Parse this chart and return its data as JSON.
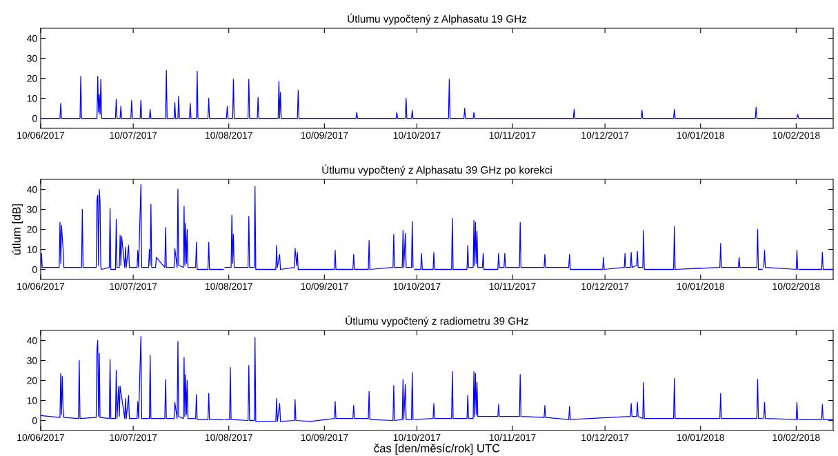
{
  "chart_data": [
    {
      "type": "line",
      "title": "Útlumu vypočtený z Alphasatu 19 GHz",
      "xlim": [
        "2017-06-10",
        "2018-02-22"
      ],
      "ylim": [
        -5,
        45
      ],
      "yticks": [
        0,
        10,
        20,
        30,
        40
      ],
      "xticks": [
        {
          "value": "2017-06-10",
          "label": "10/06/2017"
        },
        {
          "value": "2017-07-10",
          "label": "10/07/2017"
        },
        {
          "value": "2017-08-10",
          "label": "10/08/2017"
        },
        {
          "value": "2017-09-10",
          "label": "10/09/2017"
        },
        {
          "value": "2017-10-10",
          "label": "10/10/2017"
        },
        {
          "value": "2017-11-10",
          "label": "10/11/2017"
        },
        {
          "value": "2017-12-10",
          "label": "10/12/2017"
        },
        {
          "value": "2018-01-10",
          "label": "10/01/2018"
        },
        {
          "value": "2018-02-10",
          "label": "10/02/2018"
        }
      ],
      "grid": false,
      "series": [
        {
          "color": "#0000ff",
          "x": [
            "2017-06-10T00:00",
            "2017-06-16T06:00",
            "2017-06-16T12:00",
            "2017-06-16T18:00",
            "2017-06-22T18:00",
            "2017-06-23T00:00",
            "2017-06-23T06:00",
            "2017-06-28T06:00",
            "2017-06-28T12:00",
            "2017-06-28T18:00",
            "2017-06-29T00:00",
            "2017-06-29T06:00",
            "2017-06-29T12:00",
            "2017-06-29T18:00",
            "2017-07-04T06:00",
            "2017-07-04T12:00",
            "2017-07-04T18:00",
            "2017-07-05T18:00",
            "2017-07-06T00:00",
            "2017-07-06T06:00",
            "2017-07-09T06:00",
            "2017-07-09T12:00",
            "2017-07-09T18:00",
            "2017-07-12T06:00",
            "2017-07-12T12:00",
            "2017-07-12T18:00",
            "2017-07-15T06:00",
            "2017-07-15T12:00",
            "2017-07-15T18:00",
            "2017-07-20T12:00",
            "2017-07-20T18:00",
            "2017-07-21T00:00",
            "2017-07-23T06:00",
            "2017-07-23T12:00",
            "2017-07-23T18:00",
            "2017-07-24T12:00",
            "2017-07-24T18:00",
            "2017-07-25T00:00",
            "2017-07-28T06:00",
            "2017-07-28T12:00",
            "2017-07-28T18:00",
            "2017-07-30T12:00",
            "2017-07-30T18:00",
            "2017-07-31T00:00",
            "2017-08-03T06:00",
            "2017-08-03T12:00",
            "2017-08-03T18:00",
            "2017-08-09T06:00",
            "2017-08-09T12:00",
            "2017-08-09T18:00",
            "2017-08-11T06:00",
            "2017-08-11T12:00",
            "2017-08-11T18:00",
            "2017-08-16T06:00",
            "2017-08-16T12:00",
            "2017-08-16T18:00",
            "2017-08-19T06:00",
            "2017-08-19T12:00",
            "2017-08-19T18:00",
            "2017-08-26T00:00",
            "2017-08-26T06:00",
            "2017-08-26T12:00",
            "2017-08-26T18:00",
            "2017-08-27T00:00",
            "2017-09-01T06:00",
            "2017-09-01T12:00",
            "2017-09-01T18:00",
            "2017-09-20T06:00",
            "2017-09-20T12:00",
            "2017-09-20T18:00",
            "2017-10-03T06:00",
            "2017-10-03T12:00",
            "2017-10-03T18:00",
            "2017-10-06T06:00",
            "2017-10-06T12:00",
            "2017-10-06T18:00",
            "2017-10-08T06:00",
            "2017-10-08T12:00",
            "2017-10-08T18:00",
            "2017-10-20T06:00",
            "2017-10-20T12:00",
            "2017-10-20T18:00",
            "2017-10-25T06:00",
            "2017-10-25T12:00",
            "2017-10-25T18:00",
            "2017-10-28T06:00",
            "2017-10-28T12:00",
            "2017-10-28T18:00",
            "2017-11-29T18:00",
            "2017-11-30T00:00",
            "2017-11-30T06:00",
            "2017-12-21T18:00",
            "2017-12-22T00:00",
            "2017-12-22T06:00",
            "2018-01-01T06:00",
            "2018-01-01T12:00",
            "2018-01-01T18:00",
            "2018-01-27T18:00",
            "2018-01-28T00:00",
            "2018-01-28T06:00",
            "2018-02-10T06:00",
            "2018-02-10T12:00",
            "2018-02-10T18:00",
            "2018-02-22T00:00"
          ],
          "values": [
            0,
            0,
            7.5,
            0,
            0,
            21,
            0,
            0,
            21,
            3,
            12,
            2,
            19.5,
            0,
            0,
            9.5,
            0,
            0,
            6,
            0,
            0,
            9,
            0,
            0,
            9,
            0,
            0,
            4.5,
            0,
            0,
            24,
            0,
            0,
            8,
            0,
            0,
            11,
            0,
            0,
            7.5,
            0,
            0,
            23.5,
            0,
            0,
            10,
            0,
            0,
            6,
            0,
            0,
            19.5,
            0,
            0,
            19.5,
            0,
            0,
            10.5,
            0,
            0,
            18.5,
            0,
            13,
            0,
            0,
            14,
            0,
            0,
            3,
            0,
            0,
            3,
            0,
            0,
            10,
            0,
            0,
            4,
            0,
            0,
            19.5,
            0,
            0,
            5,
            0,
            0,
            3,
            0,
            0,
            4.5,
            0,
            0,
            4,
            0,
            0,
            4.5,
            0,
            0,
            5.5,
            0,
            0,
            2,
            0,
            0
          ]
        }
      ]
    },
    {
      "type": "line",
      "title": "Útlumu vypočtený z Alphasatu 39 GHz po korekci",
      "ylabel": "útlum [dB]",
      "xlim": [
        "2017-06-10",
        "2018-02-22"
      ],
      "ylim": [
        -5,
        45
      ],
      "yticks": [
        0,
        10,
        20,
        30,
        40
      ],
      "xticks": [
        {
          "value": "2017-06-10",
          "label": "10/06/2017"
        },
        {
          "value": "2017-07-10",
          "label": "10/07/2017"
        },
        {
          "value": "2017-08-10",
          "label": "10/08/2017"
        },
        {
          "value": "2017-09-10",
          "label": "10/09/2017"
        },
        {
          "value": "2017-10-10",
          "label": "10/10/2017"
        },
        {
          "value": "2017-11-10",
          "label": "10/11/2017"
        },
        {
          "value": "2017-12-10",
          "label": "10/12/2017"
        },
        {
          "value": "2018-01-10",
          "label": "10/01/2018"
        },
        {
          "value": "2018-02-10",
          "label": "10/02/2018"
        }
      ],
      "grid": false,
      "series": [
        {
          "color": "#0000ff",
          "x": [
            "2017-06-10T00:00",
            "2017-06-10T06:00",
            "2017-06-10T12:00",
            "2017-06-16T00:00",
            "2017-06-16T06:00",
            "2017-06-16T12:00",
            "2017-06-16T18:00",
            "2017-06-17T06:00",
            "2017-06-17T12:00",
            "2017-06-23T06:00",
            "2017-06-23T12:00",
            "2017-06-23T18:00",
            "2017-06-28T00:00",
            "2017-06-28T06:00",
            "2017-06-28T12:00",
            "2017-06-28T18:00",
            "2017-06-29T00:00",
            "2017-06-29T06:00",
            "2017-06-29T12:00",
            "2017-06-29T18:00",
            "2017-07-02T06:00",
            "2017-07-02T12:00",
            "2017-07-02T18:00",
            "2017-07-04T06:00",
            "2017-07-04T12:00",
            "2017-07-04T18:00",
            "2017-07-05T12:00",
            "2017-07-05T18:00",
            "2017-07-06T00:00",
            "2017-07-06T06:00",
            "2017-07-07T06:00",
            "2017-07-07T12:00",
            "2017-07-07T18:00",
            "2017-07-08T12:00",
            "2017-07-08T18:00",
            "2017-07-11T06:00",
            "2017-07-11T12:00",
            "2017-07-11T18:00",
            "2017-07-12T12:00",
            "2017-07-12T18:00",
            "2017-07-15T00:00",
            "2017-07-15T06:00",
            "2017-07-15T12:00",
            "2017-07-15T18:00",
            "2017-07-16T00:00",
            "2017-07-17T06:00",
            "2017-07-17T12:00",
            "2017-07-20T06:00",
            "2017-07-20T12:00",
            "2017-07-20T18:00",
            "2017-07-23T06:00",
            "2017-07-23T12:00",
            "2017-07-24T06:00",
            "2017-07-24T12:00",
            "2017-07-24T18:00",
            "2017-07-26T06:00",
            "2017-07-26T12:00",
            "2017-07-26T18:00",
            "2017-07-27T00:00",
            "2017-07-27T06:00",
            "2017-07-27T12:00",
            "2017-07-27T18:00",
            "2017-07-30T06:00",
            "2017-07-30T12:00",
            "2017-07-30T18:00",
            "2017-08-03T06:00",
            "2017-08-03T12:00",
            "2017-08-03T18:00",
            "2017-08-08T06:00",
            "2017-08-08T12:00",
            "2017-08-08T18:00",
            "2017-08-10T18:00",
            "2017-08-11T00:00",
            "2017-08-11T06:00",
            "2017-08-11T12:00",
            "2017-08-11T18:00",
            "2017-08-16T06:00",
            "2017-08-16T12:00",
            "2017-08-16T18:00",
            "2017-08-18T06:00",
            "2017-08-18T12:00",
            "2017-08-18T18:00",
            "2017-08-25T06:00",
            "2017-08-25T12:00",
            "2017-08-25T18:00",
            "2017-08-26T12:00",
            "2017-08-26T18:00",
            "2017-08-31T06:00",
            "2017-08-31T12:00",
            "2017-09-01T00:00",
            "2017-09-01T06:00",
            "2017-09-01T12:00",
            "2017-09-13T06:00",
            "2017-09-13T12:00",
            "2017-09-13T18:00",
            "2017-09-19T06:00",
            "2017-09-19T12:00",
            "2017-09-19T18:00",
            "2017-09-24T06:00",
            "2017-09-24T12:00",
            "2017-09-24T18:00",
            "2017-10-02T06:00",
            "2017-10-02T12:00",
            "2017-10-02T18:00",
            "2017-10-05T06:00",
            "2017-10-05T12:00",
            "2017-10-05T18:00",
            "2017-10-06T06:00",
            "2017-10-06T12:00",
            "2017-10-08T06:00",
            "2017-10-08T12:00",
            "2017-10-08T18:00",
            "2017-10-09T00:00",
            "2017-10-09T06:00",
            "2017-10-11T06:00",
            "2017-10-11T12:00",
            "2017-10-11T18:00",
            "2017-10-15T06:00",
            "2017-10-15T12:00",
            "2017-10-15T18:00",
            "2017-10-21T06:00",
            "2017-10-21T12:00",
            "2017-10-21T18:00",
            "2017-10-26T06:00",
            "2017-10-26T12:00",
            "2017-10-26T18:00",
            "2017-10-28T06:00",
            "2017-10-28T12:00",
            "2017-10-28T18:00",
            "2017-10-29T00:00",
            "2017-10-29T06:00",
            "2017-10-29T12:00",
            "2017-10-29T18:00",
            "2017-10-31T06:00",
            "2017-10-31T12:00",
            "2017-10-31T18:00",
            "2017-11-05T06:00",
            "2017-11-05T12:00",
            "2017-11-05T18:00",
            "2017-11-07T06:00",
            "2017-11-07T12:00",
            "2017-11-07T18:00",
            "2017-11-12T06:00",
            "2017-11-12T12:00",
            "2017-11-12T18:00",
            "2017-11-20T06:00",
            "2017-11-20T12:00",
            "2017-11-20T18:00",
            "2017-11-28T06:00",
            "2017-11-28T12:00",
            "2017-11-28T18:00",
            "2017-12-09T06:00",
            "2017-12-09T12:00",
            "2017-12-09T18:00",
            "2017-12-16T06:00",
            "2017-12-16T12:00",
            "2017-12-16T18:00",
            "2017-12-18T06:00",
            "2017-12-18T12:00",
            "2017-12-18T18:00",
            "2017-12-20T06:00",
            "2017-12-20T12:00",
            "2017-12-20T18:00",
            "2017-12-22T06:00",
            "2017-12-22T12:00",
            "2017-12-22T18:00",
            "2018-01-01T06:00",
            "2018-01-01T12:00",
            "2018-01-01T18:00",
            "2018-01-16T06:00",
            "2018-01-16T12:00",
            "2018-01-16T18:00",
            "2018-01-22T06:00",
            "2018-01-22T12:00",
            "2018-01-22T18:00",
            "2018-01-28T06:00",
            "2018-01-28T12:00",
            "2018-01-28T18:00",
            "2018-01-30T00:00",
            "2018-01-30T06:00",
            "2018-01-30T12:00",
            "2018-01-30T18:00",
            "2018-01-31T00:00",
            "2018-02-10T00:00",
            "2018-02-10T06:00",
            "2018-02-10T12:00",
            "2018-02-10T18:00",
            "2018-02-11T00:00",
            "2018-02-18T06:00",
            "2018-02-18T12:00",
            "2018-02-18T18:00",
            "2018-02-22T00:00"
          ],
          "values": [
            1,
            8,
            1,
            1,
            23.5,
            3,
            22,
            10.5,
            1,
            1,
            30,
            1,
            1,
            35,
            37,
            2,
            40,
            33.5,
            1,
            0,
            1,
            30.5,
            0,
            0,
            25,
            1,
            1,
            17,
            2,
            16.5,
            1,
            11,
            1,
            12,
            1,
            1,
            9.5,
            1,
            42.5,
            1,
            1,
            10,
            2,
            32.5,
            1,
            1,
            6,
            1,
            21,
            1,
            1,
            10.5,
            1,
            40,
            2,
            1,
            31.5,
            2,
            23,
            3,
            20,
            1,
            1,
            13.5,
            0,
            0,
            13.5,
            0,
            0,
            null,
            1,
            1,
            27,
            3,
            17.5,
            1,
            1,
            26.5,
            1,
            1,
            41.5,
            0,
            0,
            12,
            1,
            7.5,
            0,
            1,
            10.5,
            2,
            8.5,
            0,
            0,
            9.5,
            0,
            0,
            7.5,
            0,
            0,
            14.5,
            0,
            1,
            17.5,
            1,
            1,
            19.5,
            1,
            18,
            1,
            1,
            24,
            1,
            null,
            0,
            0,
            8,
            0,
            0,
            8.5,
            0,
            0,
            25.5,
            0,
            0,
            12,
            1,
            1,
            24.5,
            2,
            23.5,
            3,
            19,
            1,
            1,
            8,
            0,
            0,
            8,
            1,
            1,
            8,
            1,
            1,
            23.5,
            1,
            1,
            7.5,
            1,
            1,
            7.5,
            0,
            0,
            6,
            0,
            1,
            8,
            1,
            1,
            8.5,
            1,
            2,
            9,
            1,
            1,
            19.5,
            0,
            0,
            21.5,
            0,
            1,
            13,
            1,
            1,
            6,
            1,
            1,
            20,
            0,
            0,
            null,
            1,
            9.5,
            1,
            0,
            9.5,
            0,
            null,
            0,
            0,
            8.5,
            0,
            0
          ]
        }
      ]
    },
    {
      "type": "line",
      "title": "Útlumu vypočtený z radiometru 39 GHz",
      "xlabel": "čas [den/měsíc/rok] UTC",
      "xlim": [
        "2017-06-10",
        "2018-02-22"
      ],
      "ylim": [
        -5,
        45
      ],
      "yticks": [
        0,
        10,
        20,
        30,
        40
      ],
      "xticks": [
        {
          "value": "2017-06-10",
          "label": "10/06/2017"
        },
        {
          "value": "2017-07-10",
          "label": "10/07/2017"
        },
        {
          "value": "2017-08-10",
          "label": "10/08/2017"
        },
        {
          "value": "2017-09-10",
          "label": "10/09/2017"
        },
        {
          "value": "2017-10-10",
          "label": "10/10/2017"
        },
        {
          "value": "2017-11-10",
          "label": "10/11/2017"
        },
        {
          "value": "2017-12-10",
          "label": "10/12/2017"
        },
        {
          "value": "2018-01-10",
          "label": "10/01/2018"
        },
        {
          "value": "2018-02-10",
          "label": "10/02/2018"
        }
      ],
      "grid": false,
      "series": [
        {
          "color": "#0000ff",
          "x": [
            "2017-06-10T00:00",
            "2017-06-16T06:00",
            "2017-06-16T12:00",
            "2017-06-16T18:00",
            "2017-06-17T00:00",
            "2017-06-17T06:00",
            "2017-06-17T12:00",
            "2017-06-22T06:00",
            "2017-06-22T12:00",
            "2017-06-22T18:00",
            "2017-06-28T00:00",
            "2017-06-28T06:00",
            "2017-06-28T12:00",
            "2017-06-28T18:00",
            "2017-06-29T00:00",
            "2017-06-29T06:00",
            "2017-07-02T06:00",
            "2017-07-02T12:00",
            "2017-07-02T18:00",
            "2017-07-04T06:00",
            "2017-07-04T12:00",
            "2017-07-04T18:00",
            "2017-07-05T06:00",
            "2017-07-05T12:00",
            "2017-07-05T18:00",
            "2017-07-07T06:00",
            "2017-07-07T12:00",
            "2017-07-07T18:00",
            "2017-07-08T12:00",
            "2017-07-08T18:00",
            "2017-07-11T06:00",
            "2017-07-11T12:00",
            "2017-07-11T18:00",
            "2017-07-12T12:00",
            "2017-07-12T18:00",
            "2017-07-15T06:00",
            "2017-07-15T12:00",
            "2017-07-15T18:00",
            "2017-07-20T06:00",
            "2017-07-20T12:00",
            "2017-07-20T18:00",
            "2017-07-23T06:00",
            "2017-07-23T12:00",
            "2017-07-24T06:00",
            "2017-07-24T12:00",
            "2017-07-24T18:00",
            "2017-07-26T06:00",
            "2017-07-26T12:00",
            "2017-07-26T18:00",
            "2017-07-27T00:00",
            "2017-07-27T06:00",
            "2017-07-27T12:00",
            "2017-07-27T18:00",
            "2017-07-30T06:00",
            "2017-07-30T12:00",
            "2017-07-30T18:00",
            "2017-08-03T06:00",
            "2017-08-03T12:00",
            "2017-08-03T18:00",
            "2017-08-08T06:00",
            "2017-08-08T12:00",
            "2017-08-08T18:00",
            "2017-08-10T06:00",
            "2017-08-10T12:00",
            "2017-08-10T18:00",
            "2017-08-16T06:00",
            "2017-08-16T12:00",
            "2017-08-16T18:00",
            "2017-08-18T06:00",
            "2017-08-18T12:00",
            "2017-08-18T18:00",
            "2017-08-25T06:00",
            "2017-08-25T12:00",
            "2017-08-25T18:00",
            "2017-08-26T12:00",
            "2017-08-26T18:00",
            "2017-08-31T06:00",
            "2017-08-31T12:00",
            "2017-08-31T18:00",
            "2017-09-05T12:00",
            "2017-09-13T06:00",
            "2017-09-13T12:00",
            "2017-09-13T18:00",
            "2017-09-19T06:00",
            "2017-09-19T12:00",
            "2017-09-19T18:00",
            "2017-09-24T06:00",
            "2017-09-24T12:00",
            "2017-09-24T18:00",
            "2017-10-02T06:00",
            "2017-10-02T12:00",
            "2017-10-02T18:00",
            "2017-10-05T06:00",
            "2017-10-05T12:00",
            "2017-10-05T18:00",
            "2017-10-06T06:00",
            "2017-10-06T12:00",
            "2017-10-08T06:00",
            "2017-10-08T12:00",
            "2017-10-08T18:00",
            "2017-10-09T00:00",
            "2017-10-09T06:00",
            "2017-10-15T06:00",
            "2017-10-15T12:00",
            "2017-10-15T18:00",
            "2017-10-21T06:00",
            "2017-10-21T12:00",
            "2017-10-21T18:00",
            "2017-10-26T06:00",
            "2017-10-26T12:00",
            "2017-10-26T18:00",
            "2017-10-28T06:00",
            "2017-10-28T12:00",
            "2017-10-28T18:00",
            "2017-10-29T00:00",
            "2017-10-29T06:00",
            "2017-10-29T12:00",
            "2017-10-29T18:00",
            "2017-11-05T06:00",
            "2017-11-05T12:00",
            "2017-11-05T18:00",
            "2017-11-12T06:00",
            "2017-11-12T12:00",
            "2017-11-12T18:00",
            "2017-11-20T06:00",
            "2017-11-20T12:00",
            "2017-11-20T18:00",
            "2017-11-28T06:00",
            "2017-11-28T12:00",
            "2017-11-28T18:00",
            "2017-12-18T06:00",
            "2017-12-18T12:00",
            "2017-12-18T18:00",
            "2017-12-20T06:00",
            "2017-12-20T12:00",
            "2017-12-20T18:00",
            "2017-12-22T06:00",
            "2017-12-22T12:00",
            "2017-12-22T18:00",
            "2018-01-01T06:00",
            "2018-01-01T12:00",
            "2018-01-01T18:00",
            "2018-01-16T06:00",
            "2018-01-16T12:00",
            "2018-01-16T18:00",
            "2018-01-28T06:00",
            "2018-01-28T12:00",
            "2018-01-28T18:00",
            "2018-01-30T00:00",
            "2018-01-30T06:00",
            "2018-01-30T12:00",
            "2018-01-30T18:00",
            "2018-01-31T00:00",
            "2018-02-10T00:00",
            "2018-02-10T06:00",
            "2018-02-10T12:00",
            "2018-02-10T18:00",
            "2018-02-11T00:00",
            "2018-02-18T06:00",
            "2018-02-18T12:00",
            "2018-02-18T18:00",
            "2018-02-22T00:00"
          ],
          "values": [
            2.5,
            1.5,
            23.5,
            3,
            22,
            6,
            1.5,
            1,
            30,
            1,
            1.5,
            35.5,
            40,
            2,
            33.5,
            1.5,
            1,
            30.5,
            1,
            1,
            25,
            1,
            17,
            2,
            17,
            1,
            11,
            1,
            12.5,
            1,
            1,
            9.5,
            1,
            42,
            1,
            1,
            32.5,
            1,
            1,
            20.5,
            1,
            1,
            9,
            1,
            39.5,
            2,
            1,
            31.5,
            2,
            23,
            3,
            20,
            1,
            1,
            13,
            0.5,
            0.5,
            13.5,
            0.5,
            0.5,
            null,
            0.5,
            0.5,
            26.5,
            0.5,
            0,
            27.5,
            0,
            0,
            41.5,
            -0.5,
            -0.5,
            11,
            -0.5,
            8.5,
            -0.5,
            0,
            10.5,
            0,
            -0.5,
            1,
            9.5,
            1,
            1,
            7.5,
            1,
            1,
            14.5,
            0.5,
            0,
            17.5,
            0,
            0.5,
            20.5,
            0.5,
            18,
            0.5,
            0.5,
            24,
            0.5,
            null,
            0.5,
            1,
            8.5,
            1,
            1,
            24.5,
            1,
            1,
            12.5,
            1,
            1,
            24.5,
            2,
            23.5,
            3,
            19,
            2,
            2,
            8,
            2,
            2,
            23,
            2,
            1.5,
            7.5,
            1.5,
            0.5,
            7,
            0.5,
            2,
            8.5,
            2,
            2,
            9,
            2,
            1,
            19,
            1,
            1,
            21,
            1,
            1,
            13.5,
            1,
            1,
            20.5,
            1,
            1,
            null,
            1,
            9,
            1,
            0.5,
            9,
            0.5,
            null,
            0.5,
            0.5,
            8,
            0.5,
            0.5
          ]
        }
      ]
    }
  ]
}
